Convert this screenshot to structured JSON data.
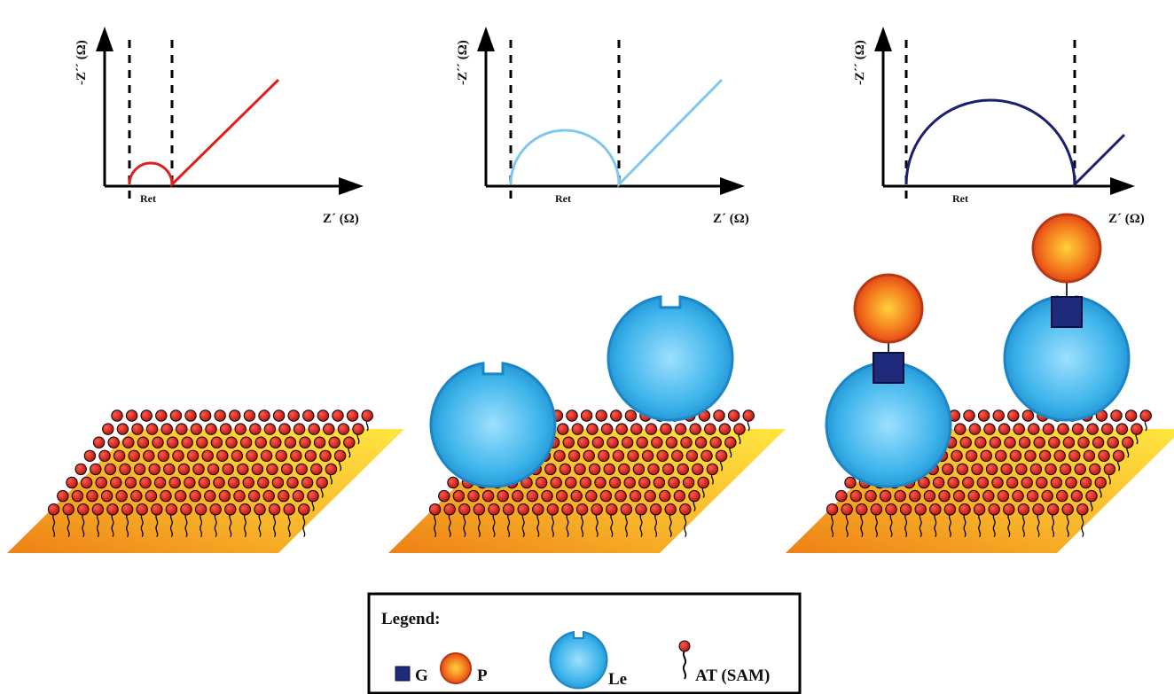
{
  "plots": [
    {
      "ylabel": "-Z´´ (Ω)",
      "xlabel": "Z´ (Ω)",
      "ret_label": "Ret",
      "color": "#e0201c"
    },
    {
      "ylabel": "-Z´´ (Ω)",
      "xlabel": "Z´ (Ω)",
      "ret_label": "Ret",
      "color": "#7ec8ee"
    },
    {
      "ylabel": "-Z´´ (Ω)",
      "xlabel": "Z´ (Ω)",
      "ret_label": "Ret",
      "color": "#1b1f6e"
    }
  ],
  "legend": {
    "title": "Legend:",
    "items": [
      {
        "symbol": "square-icon",
        "label": "G",
        "color": "#1f2a7a"
      },
      {
        "symbol": "sphere-icon",
        "label": "P",
        "color": "#e8581a"
      },
      {
        "symbol": "notched-sphere-icon",
        "label": "Le",
        "color": "#33aee6"
      },
      {
        "symbol": "thiol-molecule-icon",
        "label": "AT (SAM)",
        "color": "#cc1c18"
      }
    ]
  },
  "colors": {
    "gold_light": "#ffe14a",
    "gold_dark": "#f08c1a",
    "sam_head": "#d41f1a",
    "lectin": "#3db4ea",
    "protein": "#ee5a18",
    "glycan": "#1f2a7a"
  }
}
